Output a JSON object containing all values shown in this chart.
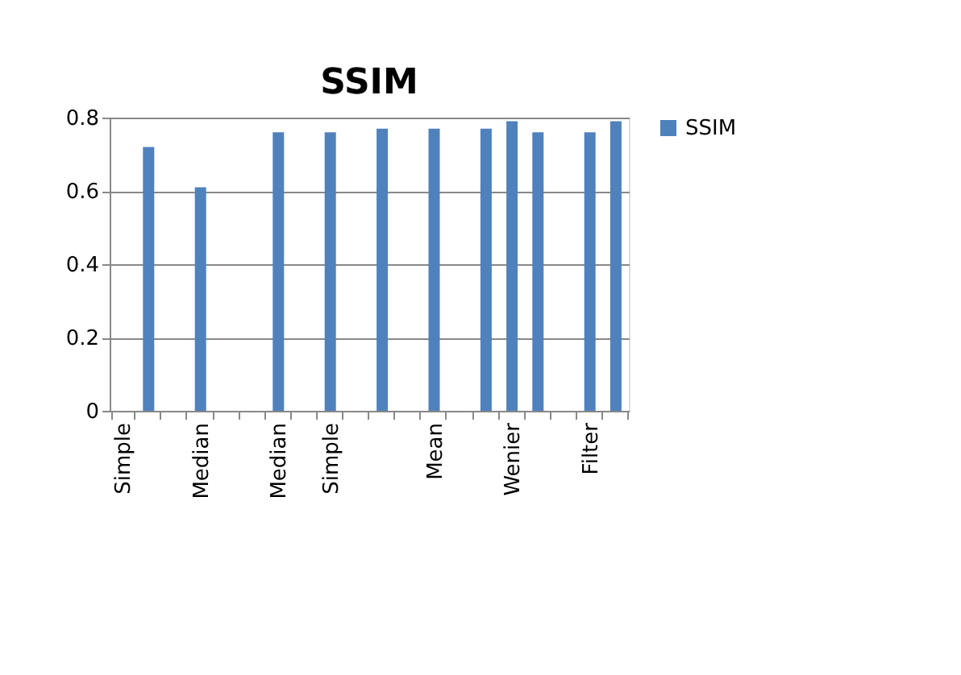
{
  "chart_data": {
    "type": "bar",
    "title": "SSIM",
    "categories": [
      "Simple",
      null,
      null,
      "Median",
      null,
      null,
      "Median",
      null,
      "Simple",
      null,
      null,
      null,
      "Mean",
      null,
      null,
      "Wenier",
      null,
      null,
      "Filter",
      null
    ],
    "series": [
      {
        "name": "SSIM",
        "color": "#4f81bd",
        "values": [
          null,
          0.72,
          null,
          0.61,
          null,
          null,
          0.76,
          null,
          0.76,
          null,
          0.77,
          null,
          0.77,
          null,
          0.77,
          0.79,
          0.76,
          null,
          0.76,
          0.79
        ]
      }
    ],
    "ylim": [
      0,
      0.8
    ],
    "yticks": [
      0,
      0.2,
      0.4,
      0.6,
      0.8
    ],
    "grid": "y",
    "legend": "right"
  }
}
